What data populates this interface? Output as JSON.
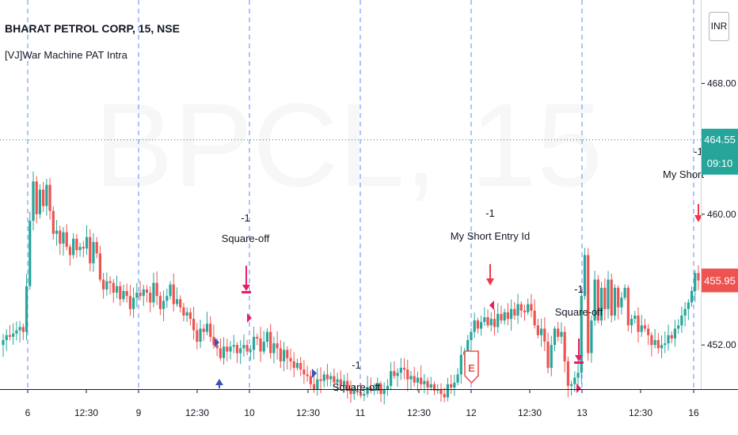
{
  "header": {
    "symbol": "BHARAT PETROL CORP, 15, NSE",
    "indicator": "[VJ]War Machine PAT Intra",
    "currency": "INR",
    "watermark": "BPCL, 15"
  },
  "colors": {
    "up": "#26a69a",
    "down": "#ef5350",
    "day_line": "#2962ff",
    "dotted_line": "#00897b",
    "square_off": "#e91e63",
    "long_marker": "#3f51b5"
  },
  "chart_data": {
    "type": "candlestick",
    "y_ticks": [
      "468.00",
      "460.00",
      "452.00"
    ],
    "ylim": [
      449.3,
      470.2
    ],
    "x_ticks": [
      "6",
      "12:30",
      "9",
      "12:30",
      "10",
      "12:30",
      "11",
      "12:30",
      "12",
      "12:30",
      "13",
      "12:30",
      "16"
    ],
    "last_price": {
      "value": "464.55",
      "time": "09:10"
    },
    "current_price": "455.95",
    "dotted_level": 464.55,
    "closes": [
      452.3,
      452.6,
      452.5,
      452.7,
      452.9,
      453.1,
      452.8,
      455.6,
      459.6,
      462.0,
      460.0,
      461.5,
      460.5,
      461.8,
      460.2,
      458.8,
      459.0,
      458.2,
      458.9,
      458.0,
      457.5,
      458.5,
      457.8,
      458.0,
      457.9,
      458.6,
      457.0,
      458.3,
      457.6,
      456.0,
      455.4,
      455.9,
      455.8,
      455.2,
      455.6,
      454.8,
      455.3,
      455.0,
      454.2,
      454.9,
      455.2,
      455.0,
      455.4,
      455.2,
      454.6,
      455.8,
      455.0,
      454.2,
      454.7,
      455.0,
      455.7,
      454.5,
      454.8,
      454.3,
      453.8,
      454.0,
      453.6,
      452.9,
      452.2,
      453.0,
      452.8,
      453.3,
      452.5,
      452.0,
      451.8,
      451.2,
      451.9,
      451.6,
      451.9,
      452.0,
      451.5,
      451.8,
      452.0,
      451.6,
      451.7,
      452.5,
      452.4,
      451.6,
      452.2,
      452.8,
      451.5,
      452.1,
      451.8,
      451.0,
      451.7,
      451.2,
      451.0,
      450.6,
      450.9,
      450.5,
      450.2,
      450.1,
      449.6,
      449.3,
      449.9,
      449.8,
      450.2,
      449.9,
      450.1,
      449.7,
      449.9,
      449.5,
      449.8,
      449.3,
      449.0,
      449.2,
      449.1,
      448.9,
      449.0,
      449.4,
      449.2,
      449.3,
      449.6,
      449.0,
      449.3,
      449.5,
      450.4,
      450.1,
      450.3,
      450.6,
      450.5,
      449.9,
      450.1,
      449.7,
      450.0,
      449.6,
      449.8,
      449.4,
      449.6,
      449.2,
      449.3,
      449.0,
      448.8,
      449.6,
      449.4,
      449.7,
      450.2,
      451.4,
      451.6,
      452.3,
      452.8,
      453.5,
      453.0,
      453.4,
      453.7,
      453.2,
      453.6,
      453.1,
      453.9,
      453.5,
      454.0,
      453.6,
      454.2,
      453.8,
      454.5,
      454.1,
      454.0,
      454.5,
      454.1,
      453.2,
      452.6,
      453.0,
      452.2,
      450.6,
      452.0,
      453.0,
      452.5,
      452.8,
      451.0,
      449.5,
      449.6,
      450.0,
      450.3,
      455.0,
      457.5,
      451.5,
      453.5,
      456.0,
      453.5,
      455.5,
      454.2,
      456.0,
      453.8,
      455.5,
      454.3,
      454.9,
      455.5,
      453.2,
      453.6,
      453.8,
      452.8,
      453.2,
      453.0,
      452.6,
      452.0,
      452.3,
      451.8,
      452.0,
      452.1,
      452.6,
      452.4,
      453.0,
      453.2,
      453.8,
      454.2,
      454.6,
      455.3,
      456.4,
      455.95
    ]
  },
  "annotations": {
    "square_off_1": {
      "qty": "-1",
      "label": "Square-off"
    },
    "short_entry": {
      "qty": "-1",
      "label": "My Short Entry Id"
    },
    "square_off_2": {
      "qty": "-1",
      "label": "Square-off"
    },
    "square_off_3": {
      "qty": "-1",
      "label": "Square-off"
    },
    "my_short": {
      "qty": "-1",
      "label": "My Short"
    },
    "entry_badge": "E"
  }
}
